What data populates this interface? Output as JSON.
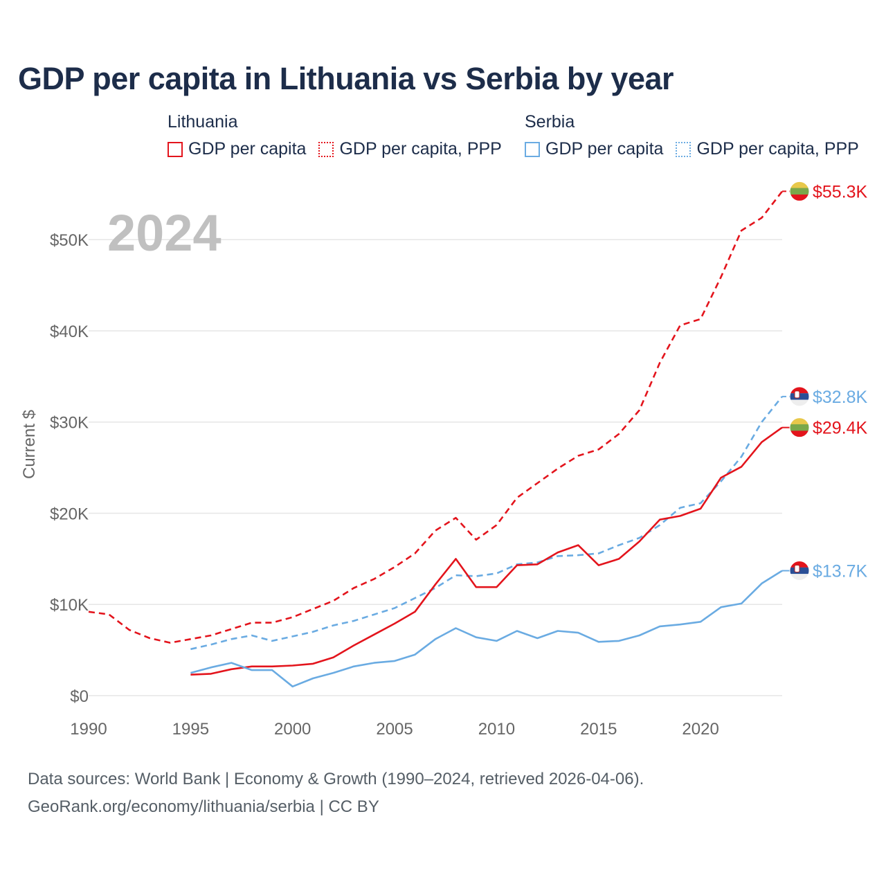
{
  "chart_data": {
    "type": "line",
    "title": "GDP per capita in Lithuania vs Serbia by year",
    "year_label": "2024",
    "ylabel": "Current $",
    "xlabel": "",
    "xlim": [
      1990,
      2024
    ],
    "ylim": [
      0,
      57000
    ],
    "x_ticks": [
      1990,
      1995,
      2000,
      2005,
      2010,
      2015,
      2020
    ],
    "y_ticks": [
      {
        "value": 0,
        "label": "$0"
      },
      {
        "value": 10000,
        "label": "$10K"
      },
      {
        "value": 20000,
        "label": "$20K"
      },
      {
        "value": 30000,
        "label": "$30K"
      },
      {
        "value": 40000,
        "label": "$40K"
      },
      {
        "value": 50000,
        "label": "$50K"
      }
    ],
    "grid": true,
    "legend": {
      "groups": [
        {
          "country": "Lithuania",
          "items": [
            {
              "label": "GDP per capita",
              "color": "#e3141c",
              "style": "solid"
            },
            {
              "label": "GDP per capita, PPP",
              "color": "#e3141c",
              "style": "dotted"
            }
          ]
        },
        {
          "country": "Serbia",
          "items": [
            {
              "label": "GDP per capita",
              "color": "#6aabe2",
              "style": "solid"
            },
            {
              "label": "GDP per capita, PPP",
              "color": "#6aabe2",
              "style": "dotted"
            }
          ]
        }
      ]
    },
    "series": [
      {
        "name": "Lithuania GDP per capita, PPP",
        "country": "Lithuania",
        "flag": "lithuania",
        "color": "#e3141c",
        "dashed": true,
        "end_label": "$55.3K",
        "x": [
          1990,
          1991,
          1992,
          1993,
          1994,
          1995,
          1996,
          1997,
          1998,
          1999,
          2000,
          2001,
          2002,
          2003,
          2004,
          2005,
          2006,
          2007,
          2008,
          2009,
          2010,
          2011,
          2012,
          2013,
          2014,
          2015,
          2016,
          2017,
          2018,
          2019,
          2020,
          2021,
          2022,
          2023,
          2024
        ],
        "values": [
          9200,
          8900,
          7200,
          6300,
          5800,
          6200,
          6600,
          7300,
          8000,
          8000,
          8600,
          9500,
          10400,
          11800,
          12800,
          14100,
          15600,
          18100,
          19500,
          17100,
          18700,
          21700,
          23300,
          24900,
          26300,
          27000,
          28700,
          31300,
          36500,
          40600,
          41300,
          45900,
          51000,
          52400,
          55300
        ]
      },
      {
        "name": "Serbia GDP per capita, PPP",
        "country": "Serbia",
        "flag": "serbia",
        "color": "#6aabe2",
        "dashed": true,
        "end_label": "$32.8K",
        "x": [
          1995,
          1996,
          1997,
          1998,
          1999,
          2000,
          2001,
          2002,
          2003,
          2004,
          2005,
          2006,
          2007,
          2008,
          2009,
          2010,
          2011,
          2012,
          2013,
          2014,
          2015,
          2016,
          2017,
          2018,
          2019,
          2020,
          2021,
          2022,
          2023,
          2024
        ],
        "values": [
          5100,
          5600,
          6200,
          6600,
          6000,
          6500,
          7000,
          7700,
          8200,
          8900,
          9600,
          10700,
          11800,
          13200,
          13100,
          13400,
          14400,
          14600,
          15300,
          15400,
          15600,
          16500,
          17300,
          18700,
          20600,
          21100,
          23500,
          26200,
          30000,
          32800
        ]
      },
      {
        "name": "Lithuania GDP per capita",
        "country": "Lithuania",
        "flag": "lithuania",
        "color": "#e3141c",
        "dashed": false,
        "end_label": "$29.4K",
        "x": [
          1995,
          1996,
          1997,
          1998,
          1999,
          2000,
          2001,
          2002,
          2003,
          2004,
          2005,
          2006,
          2007,
          2008,
          2009,
          2010,
          2011,
          2012,
          2013,
          2014,
          2015,
          2016,
          2017,
          2018,
          2019,
          2020,
          2021,
          2022,
          2023,
          2024
        ],
        "values": [
          2300,
          2400,
          2900,
          3200,
          3200,
          3300,
          3500,
          4200,
          5500,
          6700,
          7900,
          9200,
          12200,
          15000,
          11900,
          11900,
          14300,
          14400,
          15700,
          16500,
          14300,
          15000,
          16900,
          19300,
          19700,
          20500,
          23900,
          25100,
          27800,
          29400
        ]
      },
      {
        "name": "Serbia GDP per capita",
        "country": "Serbia",
        "flag": "serbia",
        "color": "#6aabe2",
        "dashed": false,
        "end_label": "$13.7K",
        "x": [
          1995,
          1996,
          1997,
          1998,
          1999,
          2000,
          2001,
          2002,
          2003,
          2004,
          2005,
          2006,
          2007,
          2008,
          2009,
          2010,
          2011,
          2012,
          2013,
          2014,
          2015,
          2016,
          2017,
          2018,
          2019,
          2020,
          2021,
          2022,
          2023,
          2024
        ],
        "values": [
          2500,
          3100,
          3600,
          2800,
          2800,
          1000,
          1900,
          2500,
          3200,
          3600,
          3800,
          4500,
          6200,
          7400,
          6400,
          6000,
          7100,
          6300,
          7100,
          6900,
          5900,
          6000,
          6600,
          7600,
          7800,
          8100,
          9700,
          10100,
          12300,
          13700
        ]
      }
    ]
  },
  "footer": {
    "line1": "Data sources: World Bank | Economy & Growth (1990–2024, retrieved 2026-04-06).",
    "line2": "GeoRank.org/economy/lithuania/serbia | CC BY"
  }
}
